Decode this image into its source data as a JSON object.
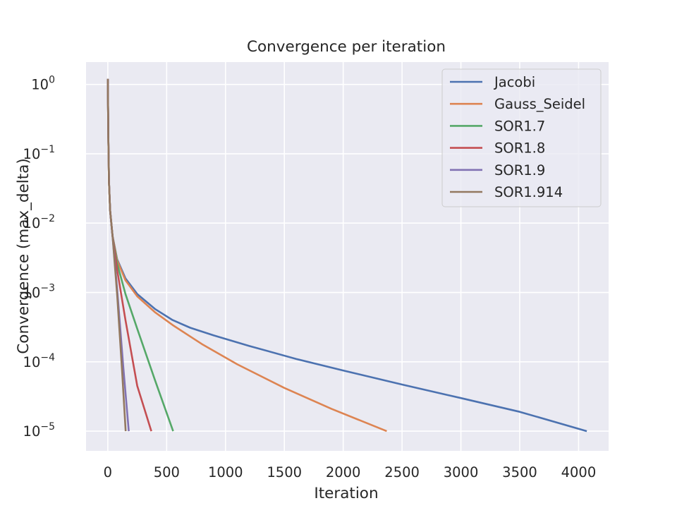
{
  "chart_data": {
    "type": "line",
    "title": "Convergence per iteration",
    "xlabel": "Iteration",
    "ylabel": "Convergence (max_delta)",
    "xlim": [
      -185,
      4255
    ],
    "ylim": [
      5.2e-06,
      2.1
    ],
    "yscale": "log",
    "x_ticks": [
      0,
      500,
      1000,
      1500,
      2000,
      2500,
      3000,
      3500,
      4000
    ],
    "y_ticks": [
      {
        "value": 1,
        "base": "10",
        "exp": "0"
      },
      {
        "value": 0.1,
        "base": "10",
        "exp": "−1"
      },
      {
        "value": 0.01,
        "base": "10",
        "exp": "−2"
      },
      {
        "value": 0.001,
        "base": "10",
        "exp": "−3"
      },
      {
        "value": 0.0001,
        "base": "10",
        "exp": "−4"
      },
      {
        "value": 1e-05,
        "base": "10",
        "exp": "−5"
      }
    ],
    "grid": true,
    "background": "#EAEAF2",
    "legend_position": "top-right",
    "series": [
      {
        "name": "Jacobi",
        "color": "#4C72B0",
        "x": [
          0,
          2,
          5,
          10,
          20,
          40,
          80,
          150,
          250,
          400,
          550,
          700,
          900,
          1200,
          1600,
          2000,
          2500,
          3000,
          3500,
          4070
        ],
        "y": [
          1.2,
          0.5,
          0.15,
          0.04,
          0.015,
          0.0065,
          0.003,
          0.0016,
          0.00095,
          0.00058,
          0.0004,
          0.00031,
          0.00024,
          0.00017,
          0.00011,
          7.5e-05,
          4.7e-05,
          3e-05,
          1.9e-05,
          1e-05
        ]
      },
      {
        "name": "Gauss_Seidel",
        "color": "#DD8452",
        "x": [
          0,
          2,
          5,
          10,
          20,
          40,
          80,
          150,
          250,
          400,
          550,
          800,
          1100,
          1500,
          1900,
          2370
        ],
        "y": [
          1.2,
          0.5,
          0.15,
          0.04,
          0.015,
          0.0065,
          0.0029,
          0.0015,
          0.00088,
          0.00052,
          0.00034,
          0.00018,
          9.2e-05,
          4.2e-05,
          2.1e-05,
          1e-05
        ]
      },
      {
        "name": "SOR1.7",
        "color": "#55A868",
        "x": [
          0,
          2,
          5,
          10,
          20,
          40,
          80,
          150,
          250,
          400,
          555
        ],
        "y": [
          1.2,
          0.5,
          0.15,
          0.04,
          0.015,
          0.0065,
          0.0026,
          0.00095,
          0.0003,
          5.5e-05,
          1e-05
        ]
      },
      {
        "name": "SOR1.8",
        "color": "#C44E52",
        "x": [
          0,
          2,
          5,
          10,
          20,
          40,
          80,
          150,
          250,
          370
        ],
        "y": [
          1.2,
          0.5,
          0.15,
          0.04,
          0.015,
          0.0065,
          0.0021,
          0.0004,
          4.5e-05,
          1e-05
        ]
      },
      {
        "name": "SOR1.9",
        "color": "#8172B3",
        "x": [
          0,
          2,
          5,
          10,
          20,
          40,
          80,
          130,
          178
        ],
        "y": [
          1.2,
          0.5,
          0.15,
          0.04,
          0.015,
          0.0065,
          0.0011,
          9e-05,
          1e-05
        ]
      },
      {
        "name": "SOR1.914",
        "color": "#937860",
        "x": [
          0,
          2,
          5,
          10,
          20,
          40,
          80,
          120,
          152
        ],
        "y": [
          1.2,
          0.5,
          0.15,
          0.04,
          0.015,
          0.0065,
          0.0009,
          8e-05,
          1e-05
        ]
      }
    ]
  }
}
